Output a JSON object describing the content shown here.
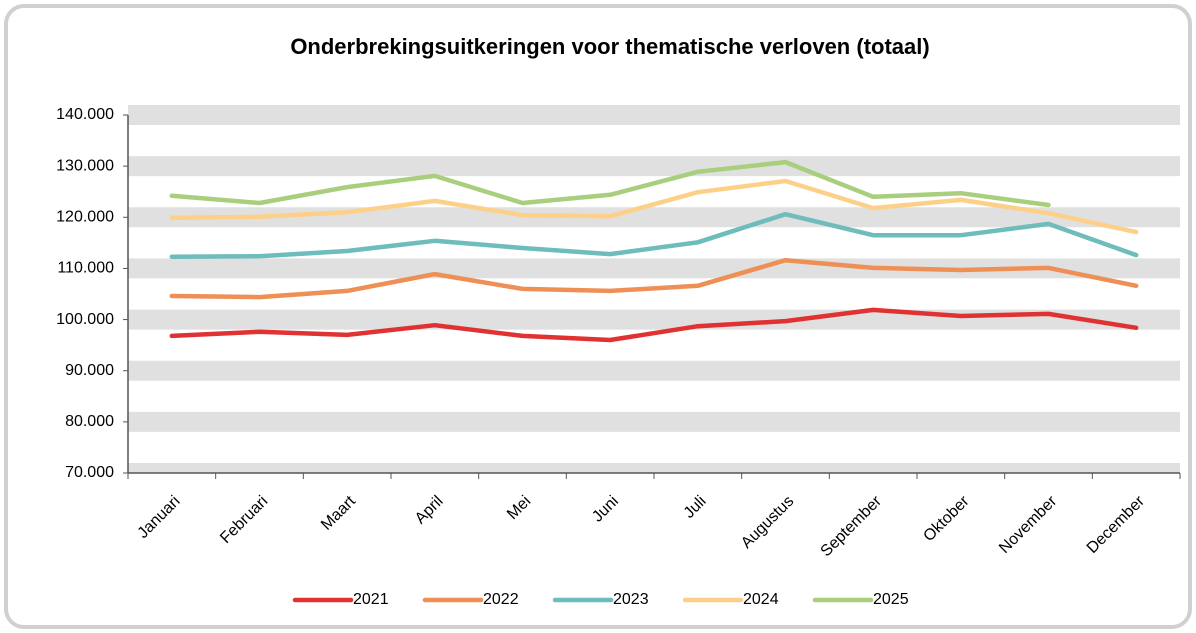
{
  "chart_data": {
    "type": "line",
    "title": "Onderbrekingsuitkeringen voor thematische verloven (totaal)",
    "categories": [
      "Januari",
      "Februari",
      "Maart",
      "April",
      "Mei",
      "Juni",
      "Juli",
      "Augustus",
      "September",
      "Oktober",
      "November",
      "December"
    ],
    "series": [
      {
        "name": "2021",
        "color": "#e03232",
        "values": [
          96800,
          97600,
          97000,
          98900,
          96800,
          96000,
          98700,
          99700,
          101900,
          100700,
          101100,
          98400
        ]
      },
      {
        "name": "2022",
        "color": "#ee8f55",
        "values": [
          104600,
          104400,
          105600,
          108900,
          106000,
          105600,
          106600,
          111600,
          110100,
          109700,
          110100,
          106600
        ]
      },
      {
        "name": "2023",
        "color": "#6fbcbc",
        "values": [
          112300,
          112400,
          113400,
          115400,
          114000,
          112800,
          115100,
          120600,
          116500,
          116500,
          118700,
          112600
        ]
      },
      {
        "name": "2024",
        "color": "#fdd08a",
        "values": [
          119900,
          120100,
          121000,
          123200,
          120400,
          120200,
          124900,
          127100,
          121800,
          123400,
          120800,
          117100
        ]
      },
      {
        "name": "2025",
        "color": "#a9cf7e",
        "values": [
          124200,
          122800,
          125900,
          128100,
          122800,
          124400,
          128900,
          130800,
          124000,
          124700,
          122400,
          null
        ]
      }
    ],
    "ylim": [
      70000,
      140000
    ],
    "yticks": [
      {
        "value": 70000,
        "label": "70.000"
      },
      {
        "value": 80000,
        "label": "80.000"
      },
      {
        "value": 90000,
        "label": "90.000"
      },
      {
        "value": 100000,
        "label": "100.000"
      },
      {
        "value": 110000,
        "label": "110.000"
      },
      {
        "value": 120000,
        "label": "120.000"
      },
      {
        "value": 130000,
        "label": "130.000"
      },
      {
        "value": 140000,
        "label": "140.000"
      }
    ],
    "grid": true,
    "legend": "bottom"
  }
}
